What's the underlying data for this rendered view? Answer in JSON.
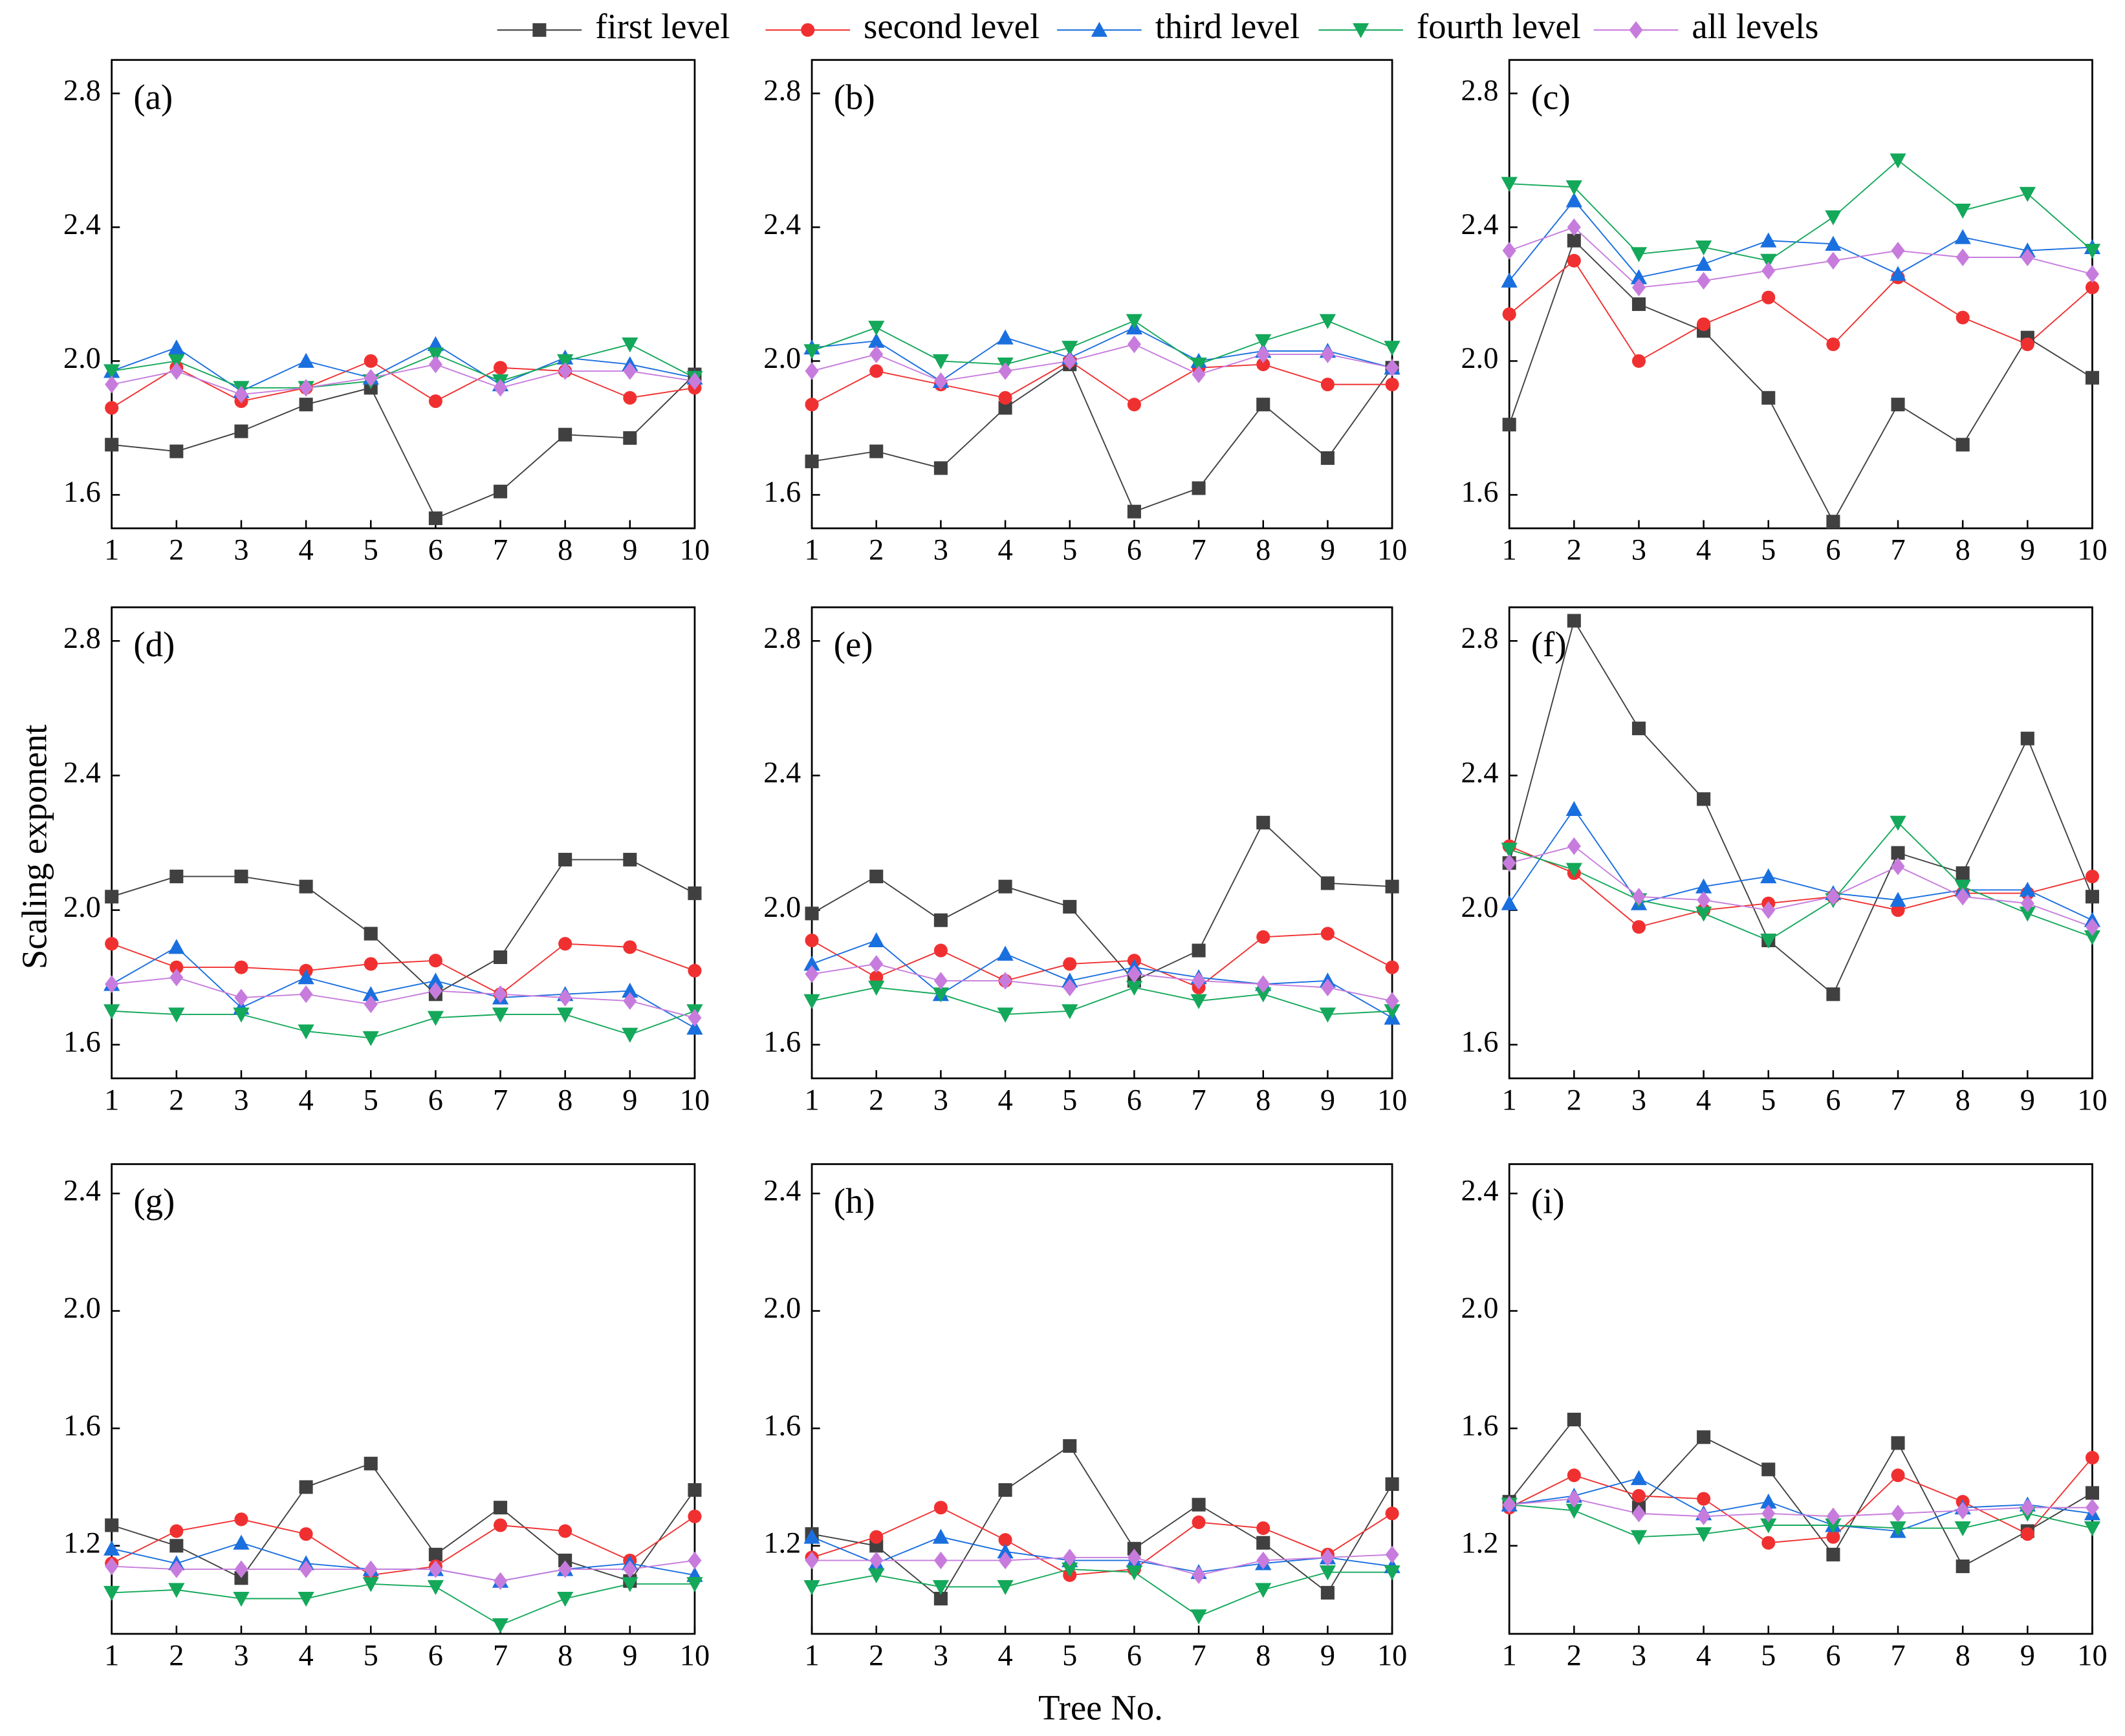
{
  "chart_data": {
    "type": "line",
    "xlabel": "Tree No.",
    "ylabel": "Scaling exponent",
    "legend": [
      {
        "name": "first level",
        "color": "#404040",
        "marker": "square"
      },
      {
        "name": "second level",
        "color": "#f03030",
        "marker": "circle"
      },
      {
        "name": "third level",
        "color": "#1a6fdf",
        "marker": "triangle-up"
      },
      {
        "name": "fourth level",
        "color": "#14a85a",
        "marker": "triangle-down"
      },
      {
        "name": "all levels",
        "color": "#c77cdd",
        "marker": "diamond"
      }
    ],
    "x": [
      1,
      2,
      3,
      4,
      5,
      6,
      7,
      8,
      9,
      10
    ],
    "xlim": [
      1,
      10
    ],
    "xticks": [
      1,
      2,
      3,
      4,
      5,
      6,
      7,
      8,
      9,
      10
    ],
    "panels": [
      {
        "title": "(a)",
        "ylim": [
          1.5,
          2.9
        ],
        "yticks": [
          1.6,
          {
            "value": 2,
            "label": "2.0"
          },
          2.4,
          2.8
        ],
        "series": [
          {
            "values": [
              1.75,
              1.73,
              1.79,
              1.87,
              1.92,
              1.53,
              1.61,
              1.78,
              1.77,
              1.96
            ]
          },
          {
            "values": [
              1.86,
              1.98,
              1.88,
              1.92,
              2.0,
              1.88,
              1.98,
              1.97,
              1.89,
              1.92
            ]
          },
          {
            "values": [
              1.97,
              2.04,
              1.91,
              2.0,
              1.95,
              2.05,
              1.93,
              2.01,
              1.99,
              1.95
            ]
          },
          {
            "values": [
              1.97,
              2.0,
              1.92,
              1.92,
              1.94,
              2.02,
              1.94,
              2.0,
              2.05,
              1.95
            ]
          },
          {
            "values": [
              1.93,
              1.97,
              1.9,
              1.92,
              1.95,
              1.99,
              1.92,
              1.97,
              1.97,
              1.94
            ]
          }
        ]
      },
      {
        "title": "(b)",
        "ylim": [
          1.5,
          2.9
        ],
        "yticks": [
          1.6,
          {
            "value": 2,
            "label": "2.0"
          },
          2.4,
          2.8
        ],
        "series": [
          {
            "values": [
              1.7,
              1.73,
              1.68,
              1.86,
              1.99,
              1.55,
              1.62,
              1.87,
              1.71,
              1.98
            ]
          },
          {
            "values": [
              1.87,
              1.97,
              1.93,
              1.89,
              2.0,
              1.87,
              1.98,
              1.99,
              1.93,
              1.93
            ]
          },
          {
            "values": [
              2.04,
              2.06,
              1.94,
              2.07,
              2.01,
              2.1,
              2.0,
              2.03,
              2.03,
              1.98
            ]
          },
          {
            "values": [
              2.03,
              2.1,
              2.0,
              1.99,
              2.04,
              2.12,
              1.99,
              2.06,
              2.12,
              2.04
            ]
          },
          {
            "values": [
              1.97,
              2.02,
              1.94,
              1.97,
              2.0,
              2.05,
              1.96,
              2.02,
              2.02,
              1.98
            ]
          }
        ]
      },
      {
        "title": "(c)",
        "ylim": [
          1.5,
          2.9
        ],
        "yticks": [
          1.6,
          {
            "value": 2,
            "label": "2.0"
          },
          2.4,
          2.8
        ],
        "series": [
          {
            "values": [
              1.81,
              2.36,
              2.17,
              2.09,
              1.89,
              1.52,
              1.87,
              1.75,
              2.07,
              1.95
            ]
          },
          {
            "values": [
              2.14,
              2.3,
              2.0,
              2.11,
              2.19,
              2.05,
              2.25,
              2.13,
              2.05,
              2.22
            ]
          },
          {
            "values": [
              2.24,
              2.48,
              2.25,
              2.29,
              2.36,
              2.35,
              2.26,
              2.37,
              2.33,
              2.34
            ]
          },
          {
            "values": [
              2.53,
              2.52,
              2.32,
              2.34,
              2.3,
              2.43,
              2.6,
              2.45,
              2.5,
              2.33
            ]
          },
          {
            "values": [
              2.33,
              2.4,
              2.22,
              2.24,
              2.27,
              2.3,
              2.33,
              2.31,
              2.31,
              2.26
            ]
          }
        ]
      },
      {
        "title": "(d)",
        "ylim": [
          1.5,
          2.9
        ],
        "yticks": [
          1.6,
          {
            "value": 2,
            "label": "2.0"
          },
          2.4,
          2.8
        ],
        "series": [
          {
            "values": [
              2.04,
              2.1,
              2.1,
              2.07,
              1.93,
              1.75,
              1.86,
              2.15,
              2.15,
              2.05
            ]
          },
          {
            "values": [
              1.9,
              1.83,
              1.83,
              1.82,
              1.84,
              1.85,
              1.75,
              1.9,
              1.89,
              1.82
            ]
          },
          {
            "values": [
              1.78,
              1.89,
              1.71,
              1.8,
              1.75,
              1.79,
              1.74,
              1.75,
              1.76,
              1.65
            ]
          },
          {
            "values": [
              1.7,
              1.69,
              1.69,
              1.64,
              1.62,
              1.68,
              1.69,
              1.69,
              1.63,
              1.7
            ]
          },
          {
            "values": [
              1.78,
              1.8,
              1.74,
              1.75,
              1.72,
              1.76,
              1.75,
              1.74,
              1.73,
              1.68
            ]
          }
        ]
      },
      {
        "title": "(e)",
        "ylim": [
          1.5,
          2.9
        ],
        "yticks": [
          1.6,
          {
            "value": 2,
            "label": "2.0"
          },
          2.4,
          2.8
        ],
        "series": [
          {
            "values": [
              1.99,
              2.1,
              1.97,
              2.07,
              2.01,
              1.79,
              1.88,
              2.26,
              2.08,
              2.07
            ]
          },
          {
            "values": [
              1.91,
              1.8,
              1.88,
              1.79,
              1.84,
              1.85,
              1.77,
              1.92,
              1.93,
              1.83
            ]
          },
          {
            "values": [
              1.84,
              1.91,
              1.75,
              1.87,
              1.79,
              1.83,
              1.8,
              1.78,
              1.79,
              1.68
            ]
          },
          {
            "values": [
              1.73,
              1.77,
              1.75,
              1.69,
              1.7,
              1.77,
              1.73,
              1.75,
              1.69,
              1.7
            ]
          },
          {
            "values": [
              1.81,
              1.84,
              1.79,
              1.79,
              1.77,
              1.81,
              1.79,
              1.78,
              1.77,
              1.73
            ]
          }
        ]
      },
      {
        "title": "(f)",
        "ylim": [
          1.5,
          2.9
        ],
        "yticks": [
          1.6,
          {
            "value": 2,
            "label": "2.0"
          },
          2.4,
          2.8
        ],
        "series": [
          {
            "values": [
              2.14,
              2.86,
              2.54,
              2.33,
              1.91,
              1.75,
              2.17,
              2.11,
              2.51,
              2.04
            ]
          },
          {
            "values": [
              2.19,
              2.11,
              1.95,
              2.0,
              2.02,
              2.04,
              2.0,
              2.05,
              2.05,
              2.1
            ]
          },
          {
            "values": [
              2.02,
              2.3,
              2.02,
              2.07,
              2.1,
              2.05,
              2.03,
              2.06,
              2.06,
              1.97
            ]
          },
          {
            "values": [
              2.18,
              2.12,
              2.03,
              1.99,
              1.91,
              2.03,
              2.26,
              2.07,
              1.99,
              1.92
            ]
          },
          {
            "values": [
              2.14,
              2.19,
              2.04,
              2.03,
              2.0,
              2.04,
              2.13,
              2.04,
              2.02,
              1.95
            ]
          }
        ]
      },
      {
        "title": "(g)",
        "ylim": [
          0.9,
          2.5
        ],
        "yticks": [
          1.2,
          1.6,
          {
            "value": 2,
            "label": "2.0"
          },
          2.4
        ],
        "series": [
          {
            "values": [
              1.27,
              1.2,
              1.09,
              1.4,
              1.48,
              1.17,
              1.33,
              1.15,
              1.08,
              1.39
            ]
          },
          {
            "values": [
              1.14,
              1.25,
              1.29,
              1.24,
              1.1,
              1.13,
              1.27,
              1.25,
              1.15,
              1.3
            ]
          },
          {
            "values": [
              1.19,
              1.14,
              1.21,
              1.14,
              1.12,
              1.12,
              1.08,
              1.12,
              1.14,
              1.1
            ]
          },
          {
            "values": [
              1.04,
              1.05,
              1.02,
              1.02,
              1.07,
              1.06,
              0.93,
              1.02,
              1.07,
              1.07
            ]
          },
          {
            "values": [
              1.13,
              1.12,
              1.12,
              1.12,
              1.12,
              1.12,
              1.08,
              1.12,
              1.12,
              1.15
            ]
          }
        ]
      },
      {
        "title": "(h)",
        "ylim": [
          0.9,
          2.5
        ],
        "yticks": [
          1.2,
          1.6,
          {
            "value": 2,
            "label": "2.0"
          },
          2.4
        ],
        "series": [
          {
            "values": [
              1.24,
              1.2,
              1.02,
              1.39,
              1.54,
              1.19,
              1.34,
              1.21,
              1.04,
              1.41
            ]
          },
          {
            "values": [
              1.16,
              1.23,
              1.33,
              1.22,
              1.1,
              1.12,
              1.28,
              1.26,
              1.17,
              1.31
            ]
          },
          {
            "values": [
              1.23,
              1.14,
              1.23,
              1.18,
              1.15,
              1.15,
              1.11,
              1.14,
              1.16,
              1.13
            ]
          },
          {
            "values": [
              1.06,
              1.1,
              1.06,
              1.06,
              1.12,
              1.11,
              0.96,
              1.05,
              1.11,
              1.11
            ]
          },
          {
            "values": [
              1.15,
              1.15,
              1.15,
              1.15,
              1.16,
              1.16,
              1.1,
              1.15,
              1.16,
              1.17
            ]
          }
        ]
      },
      {
        "title": "(i)",
        "ylim": [
          0.9,
          2.5
        ],
        "yticks": [
          1.2,
          1.6,
          {
            "value": 2,
            "label": "2.0"
          },
          2.4
        ],
        "series": [
          {
            "values": [
              1.35,
              1.63,
              1.33,
              1.57,
              1.46,
              1.17,
              1.55,
              1.13,
              1.25,
              1.38
            ]
          },
          {
            "values": [
              1.33,
              1.44,
              1.37,
              1.36,
              1.21,
              1.23,
              1.44,
              1.35,
              1.24,
              1.5
            ]
          },
          {
            "values": [
              1.34,
              1.37,
              1.43,
              1.31,
              1.35,
              1.27,
              1.25,
              1.33,
              1.34,
              1.31
            ]
          },
          {
            "values": [
              1.34,
              1.32,
              1.23,
              1.24,
              1.27,
              1.27,
              1.26,
              1.26,
              1.31,
              1.26
            ]
          },
          {
            "values": [
              1.34,
              1.36,
              1.31,
              1.3,
              1.31,
              1.3,
              1.31,
              1.32,
              1.33,
              1.33
            ]
          }
        ]
      }
    ]
  }
}
